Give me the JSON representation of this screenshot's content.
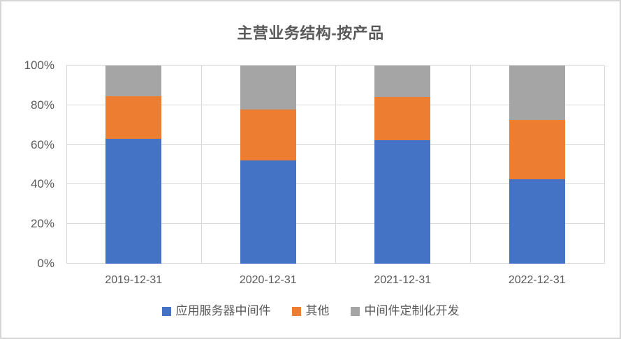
{
  "chart": {
    "title": "主营业务结构-按产品"
  },
  "chart_data": {
    "type": "bar",
    "subtype": "stacked-percent-column",
    "title": "主营业务结构-按产品",
    "categories": [
      "2019-12-31",
      "2020-12-31",
      "2021-12-31",
      "2022-12-31"
    ],
    "series": [
      {
        "name": "应用服务器中间件",
        "color": "#4472C4",
        "values": [
          63,
          52,
          62.5,
          42.5
        ]
      },
      {
        "name": "其他",
        "color": "#ED7D31",
        "values": [
          21.5,
          26,
          21.5,
          30
        ]
      },
      {
        "name": "中间件定制化开发",
        "color": "#A5A5A5",
        "values": [
          15.5,
          22,
          16,
          27.5
        ]
      }
    ],
    "yticks": [
      "0%",
      "20%",
      "40%",
      "60%",
      "80%",
      "100%"
    ],
    "ylim": [
      0,
      100
    ],
    "xlabel": "",
    "ylabel": "",
    "grid": "horizontal-major-and-category-boundaries",
    "legend_position": "bottom"
  },
  "colors": {
    "gridline": "#D9D9D9",
    "border": "#D6D6D6",
    "text": "#595959",
    "background": "#FFFFFF"
  }
}
